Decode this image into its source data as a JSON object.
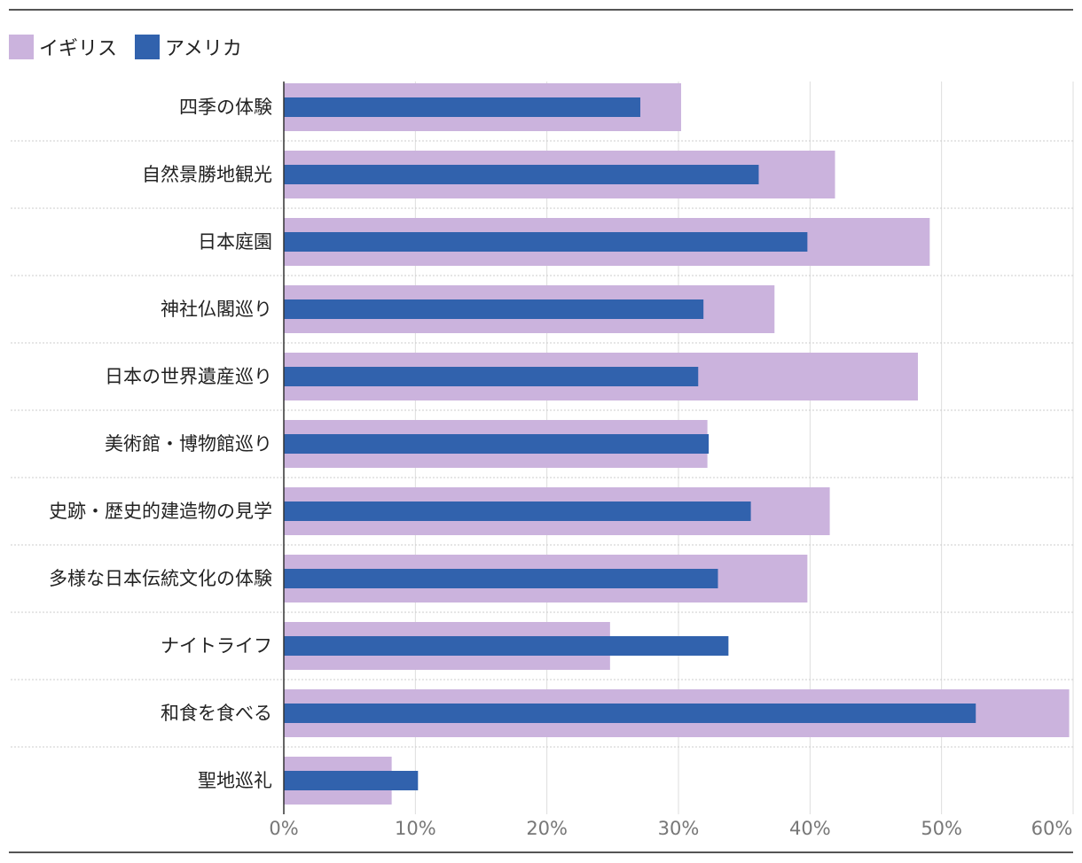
{
  "legend": {
    "uk_label": "イギリス",
    "us_label": "アメリカ"
  },
  "colors": {
    "uk": "#cbb3dd",
    "us": "#3162ad",
    "grid": "#dddddd",
    "separator": "#cccccc",
    "axis": "#333333"
  },
  "chart_data": {
    "type": "bar",
    "orientation": "horizontal",
    "categories": [
      "四季の体験",
      "自然景勝地観光",
      "日本庭園",
      "神社仏閣巡り",
      "日本の世界遺産巡り",
      "美術館・博物館巡り",
      "史跡・歴史的建造物の見学",
      "多様な日本伝統文化の体験",
      "ナイトライフ",
      "和食を食べる",
      "聖地巡礼"
    ],
    "series": [
      {
        "name": "イギリス",
        "values": [
          30.2,
          41.9,
          49.1,
          37.3,
          48.2,
          32.2,
          41.5,
          39.8,
          24.8,
          59.7,
          8.2
        ]
      },
      {
        "name": "アメリカ",
        "values": [
          27.1,
          36.1,
          39.8,
          31.9,
          31.5,
          32.3,
          35.5,
          33.0,
          33.8,
          52.6,
          10.2
        ]
      }
    ],
    "xlim": [
      0,
      60
    ],
    "xticks": [
      0,
      10,
      20,
      30,
      40,
      50,
      60
    ],
    "tick_suffix": "%",
    "grid": true,
    "legend_position": "top-left"
  }
}
